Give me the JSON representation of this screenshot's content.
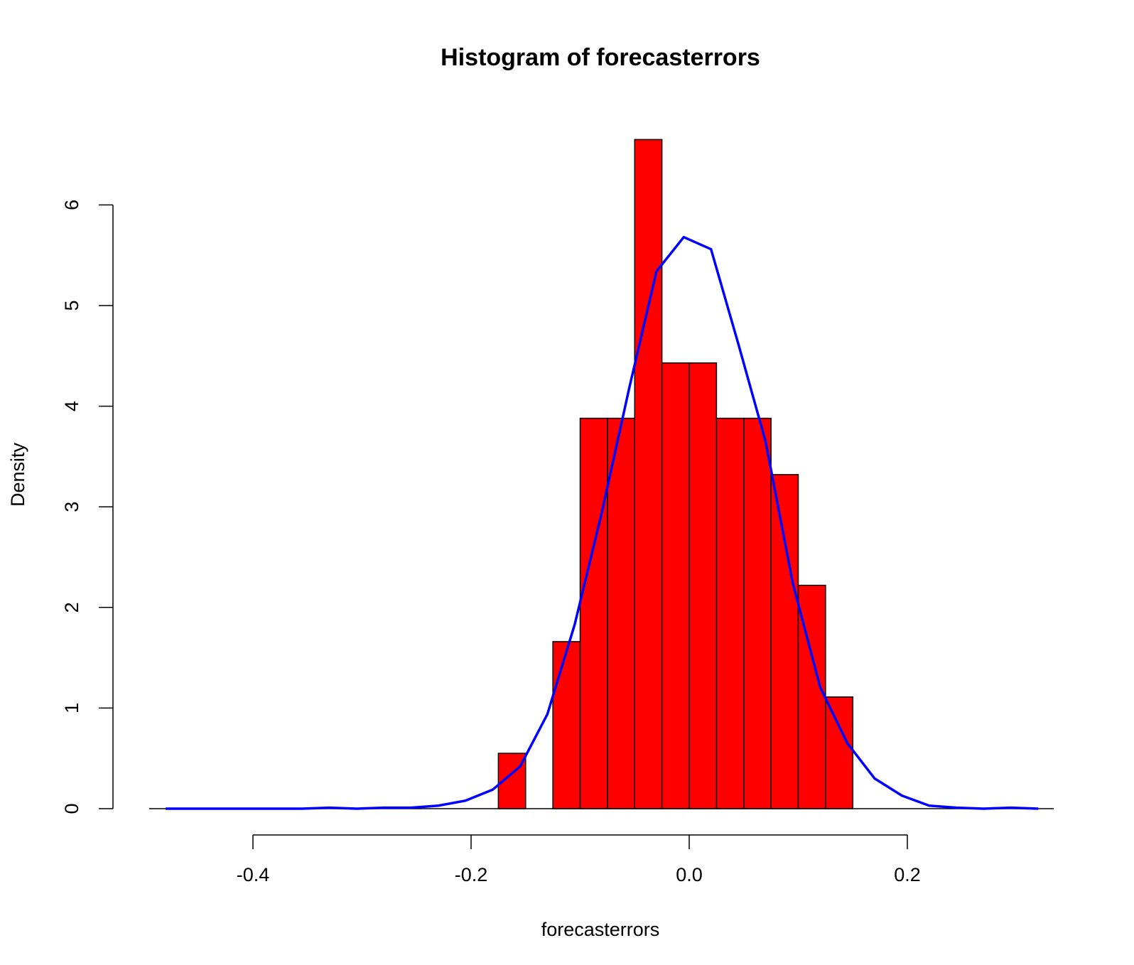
{
  "chart_data": {
    "type": "bar",
    "title": "Histogram of forecasterrors",
    "xlabel": "forecasterrors",
    "ylabel": "Density",
    "bar_color": "#ff0000",
    "bar_edge_color": "#000000",
    "line_color": "#0000ff",
    "x_ticks": [
      -0.4,
      -0.2,
      0.0,
      0.2
    ],
    "x_tick_labels": [
      "-0.4",
      "-0.2",
      "0.0",
      "0.2"
    ],
    "y_ticks": [
      0,
      1,
      2,
      3,
      4,
      5,
      6
    ],
    "y_tick_labels": [
      "0",
      "1",
      "2",
      "3",
      "4",
      "5",
      "6"
    ],
    "xlim": [
      -0.49,
      0.34
    ],
    "ylim": [
      0,
      6.6
    ],
    "bin_width": 0.025,
    "bins": [
      {
        "x0": -0.175,
        "x1": -0.15,
        "density": 0.55
      },
      {
        "x0": -0.15,
        "x1": -0.125,
        "density": 0.0
      },
      {
        "x0": -0.125,
        "x1": -0.1,
        "density": 1.66
      },
      {
        "x0": -0.1,
        "x1": -0.075,
        "density": 3.88
      },
      {
        "x0": -0.075,
        "x1": -0.05,
        "density": 3.88
      },
      {
        "x0": -0.05,
        "x1": -0.025,
        "density": 6.65
      },
      {
        "x0": -0.025,
        "x1": 0.0,
        "density": 4.43
      },
      {
        "x0": 0.0,
        "x1": 0.025,
        "density": 4.43
      },
      {
        "x0": 0.025,
        "x1": 0.05,
        "density": 3.88
      },
      {
        "x0": 0.05,
        "x1": 0.075,
        "density": 3.88
      },
      {
        "x0": 0.075,
        "x1": 0.1,
        "density": 3.32
      },
      {
        "x0": 0.1,
        "x1": 0.125,
        "density": 2.22
      },
      {
        "x0": 0.125,
        "x1": 0.15,
        "density": 1.11
      }
    ],
    "series": [
      {
        "type": "line",
        "x": [
          -0.48,
          -0.455,
          -0.43,
          -0.405,
          -0.38,
          -0.355,
          -0.33,
          -0.305,
          -0.28,
          -0.255,
          -0.23,
          -0.205,
          -0.18,
          -0.155,
          -0.13,
          -0.105,
          -0.08,
          -0.055,
          -0.03,
          -0.005,
          0.02,
          0.045,
          0.07,
          0.095,
          0.12,
          0.145,
          0.17,
          0.195,
          0.22,
          0.245,
          0.27,
          0.295,
          0.32
        ],
        "y": [
          0.0,
          0.0,
          0.0,
          0.0,
          0.0,
          0.0,
          0.01,
          0.0,
          0.01,
          0.01,
          0.03,
          0.08,
          0.19,
          0.42,
          0.94,
          1.83,
          2.95,
          4.18,
          5.34,
          5.68,
          5.56,
          4.62,
          3.65,
          2.24,
          1.21,
          0.65,
          0.3,
          0.13,
          0.03,
          0.01,
          0.0,
          0.01,
          0.0
        ]
      }
    ]
  }
}
